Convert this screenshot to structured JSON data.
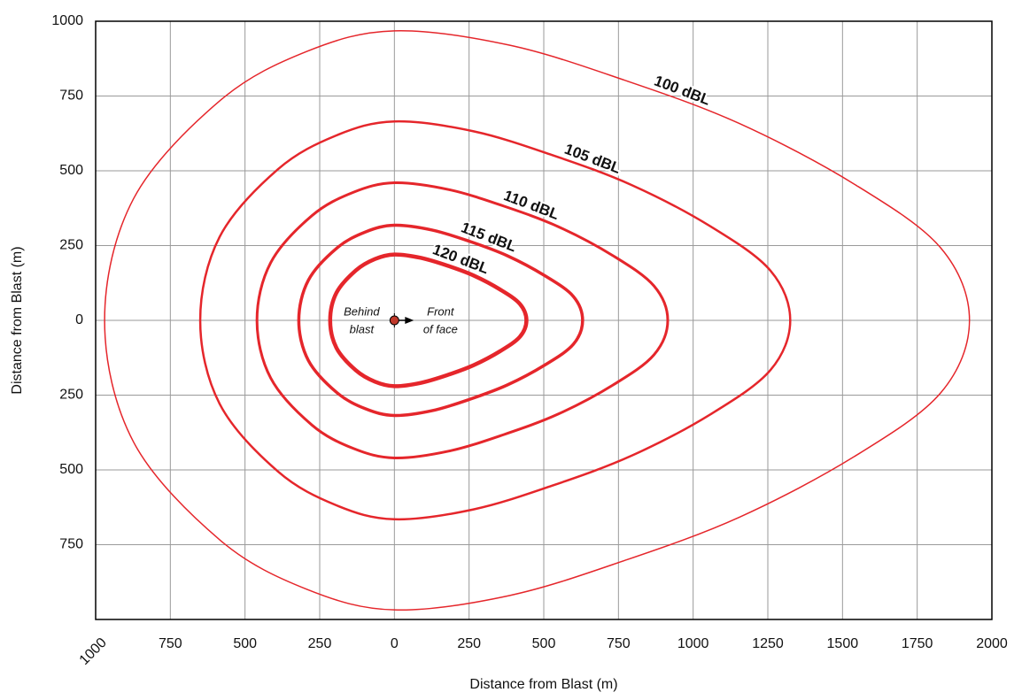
{
  "chart_data": {
    "type": "contour",
    "xlabel": "Distance from Blast (m)",
    "ylabel": "Distance from Blast (m)",
    "xlim": [
      -1000,
      2000
    ],
    "ylim": [
      -1000,
      1000
    ],
    "xticks": [
      {
        "value": -1000,
        "label": "1000"
      },
      {
        "value": -750,
        "label": "750"
      },
      {
        "value": -500,
        "label": "500"
      },
      {
        "value": -250,
        "label": "250"
      },
      0,
      250,
      500,
      750,
      1000,
      1250,
      1500,
      1750,
      2000
    ],
    "yticks": [
      {
        "value": -750,
        "label": "750"
      },
      {
        "value": -500,
        "label": "500"
      },
      {
        "value": -250,
        "label": "250"
      },
      0,
      250,
      500,
      750,
      1000
    ],
    "grid": true,
    "annotations": [
      [
        "Behind",
        "blast"
      ],
      [
        "Front",
        "of face"
      ]
    ],
    "series": [
      {
        "name": "100 dBL",
        "color": "#e5262b",
        "width": 1.5,
        "x": [
          -970,
          -873,
          -582,
          -291,
          0,
          385,
          770,
          1155,
          1540,
          1829,
          1925,
          1829,
          1540,
          1155,
          770,
          385,
          0,
          -291,
          -582,
          -873,
          -970
        ],
        "values": [
          0,
          407,
          736,
          900,
          968,
          920,
          803,
          658,
          455,
          242,
          0,
          -242,
          -455,
          -658,
          -803,
          -920,
          -968,
          -900,
          -736,
          -407,
          0
        ]
      },
      {
        "name": "105 dBL",
        "color": "#e5262b",
        "width": 2.5,
        "x": [
          -650,
          -585,
          -390,
          -195,
          0,
          265,
          530,
          795,
          1060,
          1259,
          1325,
          1259,
          1060,
          795,
          530,
          265,
          0,
          -195,
          -390,
          -585,
          -650
        ],
        "values": [
          0,
          279,
          505,
          618,
          665,
          632,
          552,
          452,
          313,
          166,
          0,
          -166,
          -313,
          -452,
          -552,
          -632,
          -665,
          -618,
          -505,
          -279,
          0
        ]
      },
      {
        "name": "110 dBL",
        "color": "#e5262b",
        "width": 3,
        "x": [
          -460,
          -414,
          -276,
          -138,
          0,
          183,
          366,
          549,
          732,
          869,
          915,
          869,
          732,
          549,
          366,
          183,
          0,
          -138,
          -276,
          -414,
          -460
        ],
        "values": [
          0,
          193,
          350,
          428,
          460,
          437,
          382,
          313,
          216,
          115,
          0,
          -115,
          -216,
          -313,
          -382,
          -437,
          -460,
          -428,
          -350,
          -193,
          0
        ]
      },
      {
        "name": "115 dBL",
        "color": "#e5262b",
        "width": 3.5,
        "x": [
          -320,
          -288,
          -192,
          -96,
          0,
          126,
          252,
          378,
          504,
          599,
          630,
          599,
          504,
          378,
          252,
          126,
          0,
          -96,
          -192,
          -288,
          -320
        ],
        "values": [
          0,
          134,
          242,
          296,
          318,
          302,
          264,
          216,
          149,
          80,
          0,
          -80,
          -149,
          -216,
          -264,
          -302,
          -318,
          -296,
          -242,
          -134,
          0
        ]
      },
      {
        "name": "120 dBL",
        "color": "#e5262b",
        "width": 4.5,
        "x": [
          -215,
          -194,
          -129,
          -65,
          0,
          88,
          177,
          265,
          354,
          420,
          442,
          420,
          354,
          265,
          177,
          88,
          0,
          -65,
          -129,
          -194,
          -215
        ],
        "values": [
          0,
          92,
          167,
          205,
          220,
          209,
          183,
          150,
          103,
          55,
          0,
          -55,
          -103,
          -150,
          -183,
          -209,
          -220,
          -205,
          -167,
          -92,
          0
        ]
      }
    ]
  }
}
